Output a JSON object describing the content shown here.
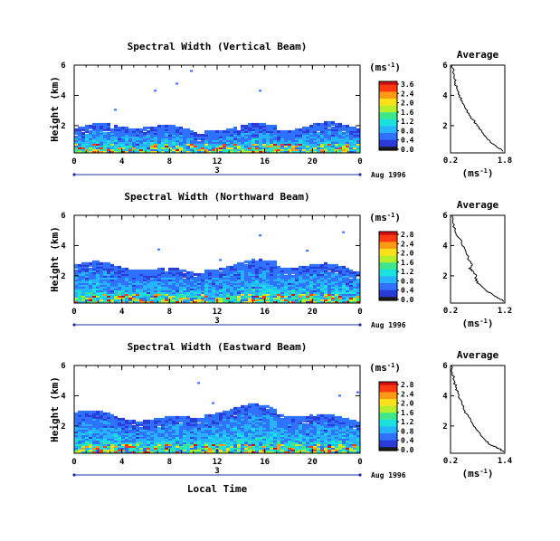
{
  "chart_data": [
    {
      "type": "heatmap",
      "title": "Spectral Width (Vertical Beam)",
      "ylabel": "Height (km)",
      "x_ticks": [
        "0",
        "4",
        "8",
        "12",
        "16",
        "20",
        "0"
      ],
      "y_ticks": [
        "2",
        "4",
        "6"
      ],
      "xlim": [
        0,
        24
      ],
      "ylim": [
        0.2,
        6
      ],
      "day_label": "3",
      "date_label": "Aug 1996",
      "colorbar": {
        "unit": "(ms",
        "unit_exp": "-1",
        "unit_close": ")",
        "ticks": [
          "3.6",
          "2.4",
          "2.0",
          "1.6",
          "1.2",
          "0.8",
          "0.4",
          "0.0"
        ],
        "max": 3.6
      },
      "profile": {
        "title": "Average",
        "xlabel": "(ms",
        "xlabel_exp": "-1",
        "xlabel_close": ")",
        "x_ticks": [
          "0.2",
          "1.8"
        ],
        "xlim": [
          0.2,
          1.8
        ],
        "y_ticks": [
          "2",
          "4",
          "6"
        ],
        "ylim": [
          0.2,
          6
        ],
        "points": [
          [
            0.25,
            6.0
          ],
          [
            0.28,
            5.6
          ],
          [
            0.3,
            5.2
          ],
          [
            0.34,
            4.8
          ],
          [
            0.4,
            4.4
          ],
          [
            0.47,
            4.0
          ],
          [
            0.55,
            3.6
          ],
          [
            0.62,
            3.2
          ],
          [
            0.74,
            2.8
          ],
          [
            0.86,
            2.4
          ],
          [
            0.98,
            2.0
          ],
          [
            1.12,
            1.6
          ],
          [
            1.26,
            1.2
          ],
          [
            1.44,
            0.8
          ],
          [
            1.62,
            0.5
          ],
          [
            1.75,
            0.3
          ]
        ]
      },
      "field": {
        "base_top": 1.5,
        "peak": 3.4,
        "sparse_top": 6.0,
        "seed": 3
      }
    },
    {
      "type": "heatmap",
      "title": "Spectral Width (Northward Beam)",
      "ylabel": "Height (km)",
      "x_ticks": [
        "0",
        "4",
        "8",
        "12",
        "16",
        "20",
        "0"
      ],
      "y_ticks": [
        "2",
        "4",
        "6"
      ],
      "xlim": [
        0,
        24
      ],
      "ylim": [
        0.2,
        6
      ],
      "day_label": "3",
      "date_label": "Aug 1996",
      "colorbar": {
        "unit": "(ms",
        "unit_exp": "-1",
        "unit_close": ")",
        "ticks": [
          "2.8",
          "2.4",
          "2.0",
          "1.6",
          "1.2",
          "0.8",
          "0.4",
          "0.0"
        ],
        "max": 2.8
      },
      "profile": {
        "title": "Average",
        "xlabel": "(ms",
        "xlabel_exp": "-1",
        "xlabel_close": ")",
        "x_ticks": [
          "0.2",
          "1.2"
        ],
        "xlim": [
          0.2,
          1.2
        ],
        "y_ticks": [
          "2",
          "4",
          "6"
        ],
        "ylim": [
          0.2,
          6
        ],
        "points": [
          [
            0.22,
            6.0
          ],
          [
            0.24,
            5.5
          ],
          [
            0.28,
            5.0
          ],
          [
            0.33,
            4.6
          ],
          [
            0.4,
            4.2
          ],
          [
            0.46,
            3.8
          ],
          [
            0.5,
            3.4
          ],
          [
            0.55,
            3.0
          ],
          [
            0.6,
            2.7
          ],
          [
            0.54,
            2.5
          ],
          [
            0.62,
            2.3
          ],
          [
            0.68,
            2.0
          ],
          [
            0.66,
            1.7
          ],
          [
            0.75,
            1.4
          ],
          [
            0.86,
            1.0
          ],
          [
            1.0,
            0.7
          ],
          [
            1.1,
            0.5
          ],
          [
            1.18,
            0.3
          ]
        ]
      },
      "field": {
        "base_top": 2.2,
        "peak": 2.7,
        "sparse_top": 5.0,
        "seed": 11
      }
    },
    {
      "type": "heatmap",
      "title": "Spectral Width (Eastward Beam)",
      "ylabel": "Height (km)",
      "x_ticks": [
        "0",
        "4",
        "8",
        "12",
        "16",
        "20",
        "0"
      ],
      "y_ticks": [
        "2",
        "4",
        "6"
      ],
      "xlim": [
        0,
        24
      ],
      "ylim": [
        0.2,
        6
      ],
      "day_label": "3",
      "date_label": "Aug 1996",
      "xlabel": "Local Time",
      "colorbar": {
        "unit": "(ms",
        "unit_exp": "-1",
        "unit_close": ")",
        "ticks": [
          "2.8",
          "2.4",
          "2.0",
          "1.6",
          "1.2",
          "0.8",
          "0.4",
          "0.0"
        ],
        "max": 2.8
      },
      "profile": {
        "title": "Average",
        "xlabel": "(ms",
        "xlabel_exp": "-1",
        "xlabel_close": ")",
        "x_ticks": [
          "0.2",
          "1.4"
        ],
        "xlim": [
          0.2,
          1.4
        ],
        "y_ticks": [
          "2",
          "4",
          "6"
        ],
        "ylim": [
          0.2,
          6
        ],
        "points": [
          [
            0.22,
            6.0
          ],
          [
            0.24,
            5.5
          ],
          [
            0.28,
            5.0
          ],
          [
            0.31,
            4.6
          ],
          [
            0.36,
            4.2
          ],
          [
            0.4,
            3.8
          ],
          [
            0.46,
            3.4
          ],
          [
            0.52,
            3.0
          ],
          [
            0.6,
            2.6
          ],
          [
            0.68,
            2.2
          ],
          [
            0.76,
            1.8
          ],
          [
            0.86,
            1.4
          ],
          [
            0.98,
            1.0
          ],
          [
            1.12,
            0.7
          ],
          [
            1.28,
            0.5
          ],
          [
            1.38,
            0.3
          ]
        ]
      },
      "field": {
        "base_top": 2.4,
        "peak": 2.7,
        "sparse_top": 5.4,
        "seed": 23
      }
    }
  ],
  "colors": {
    "scale": [
      "#1a1a1a",
      "#2b3bd8",
      "#2f72ff",
      "#27b4ff",
      "#1ae0e0",
      "#3ee88a",
      "#b4ee2c",
      "#ffe01a",
      "#ff9a14",
      "#ff3a10",
      "#d01010"
    ]
  }
}
